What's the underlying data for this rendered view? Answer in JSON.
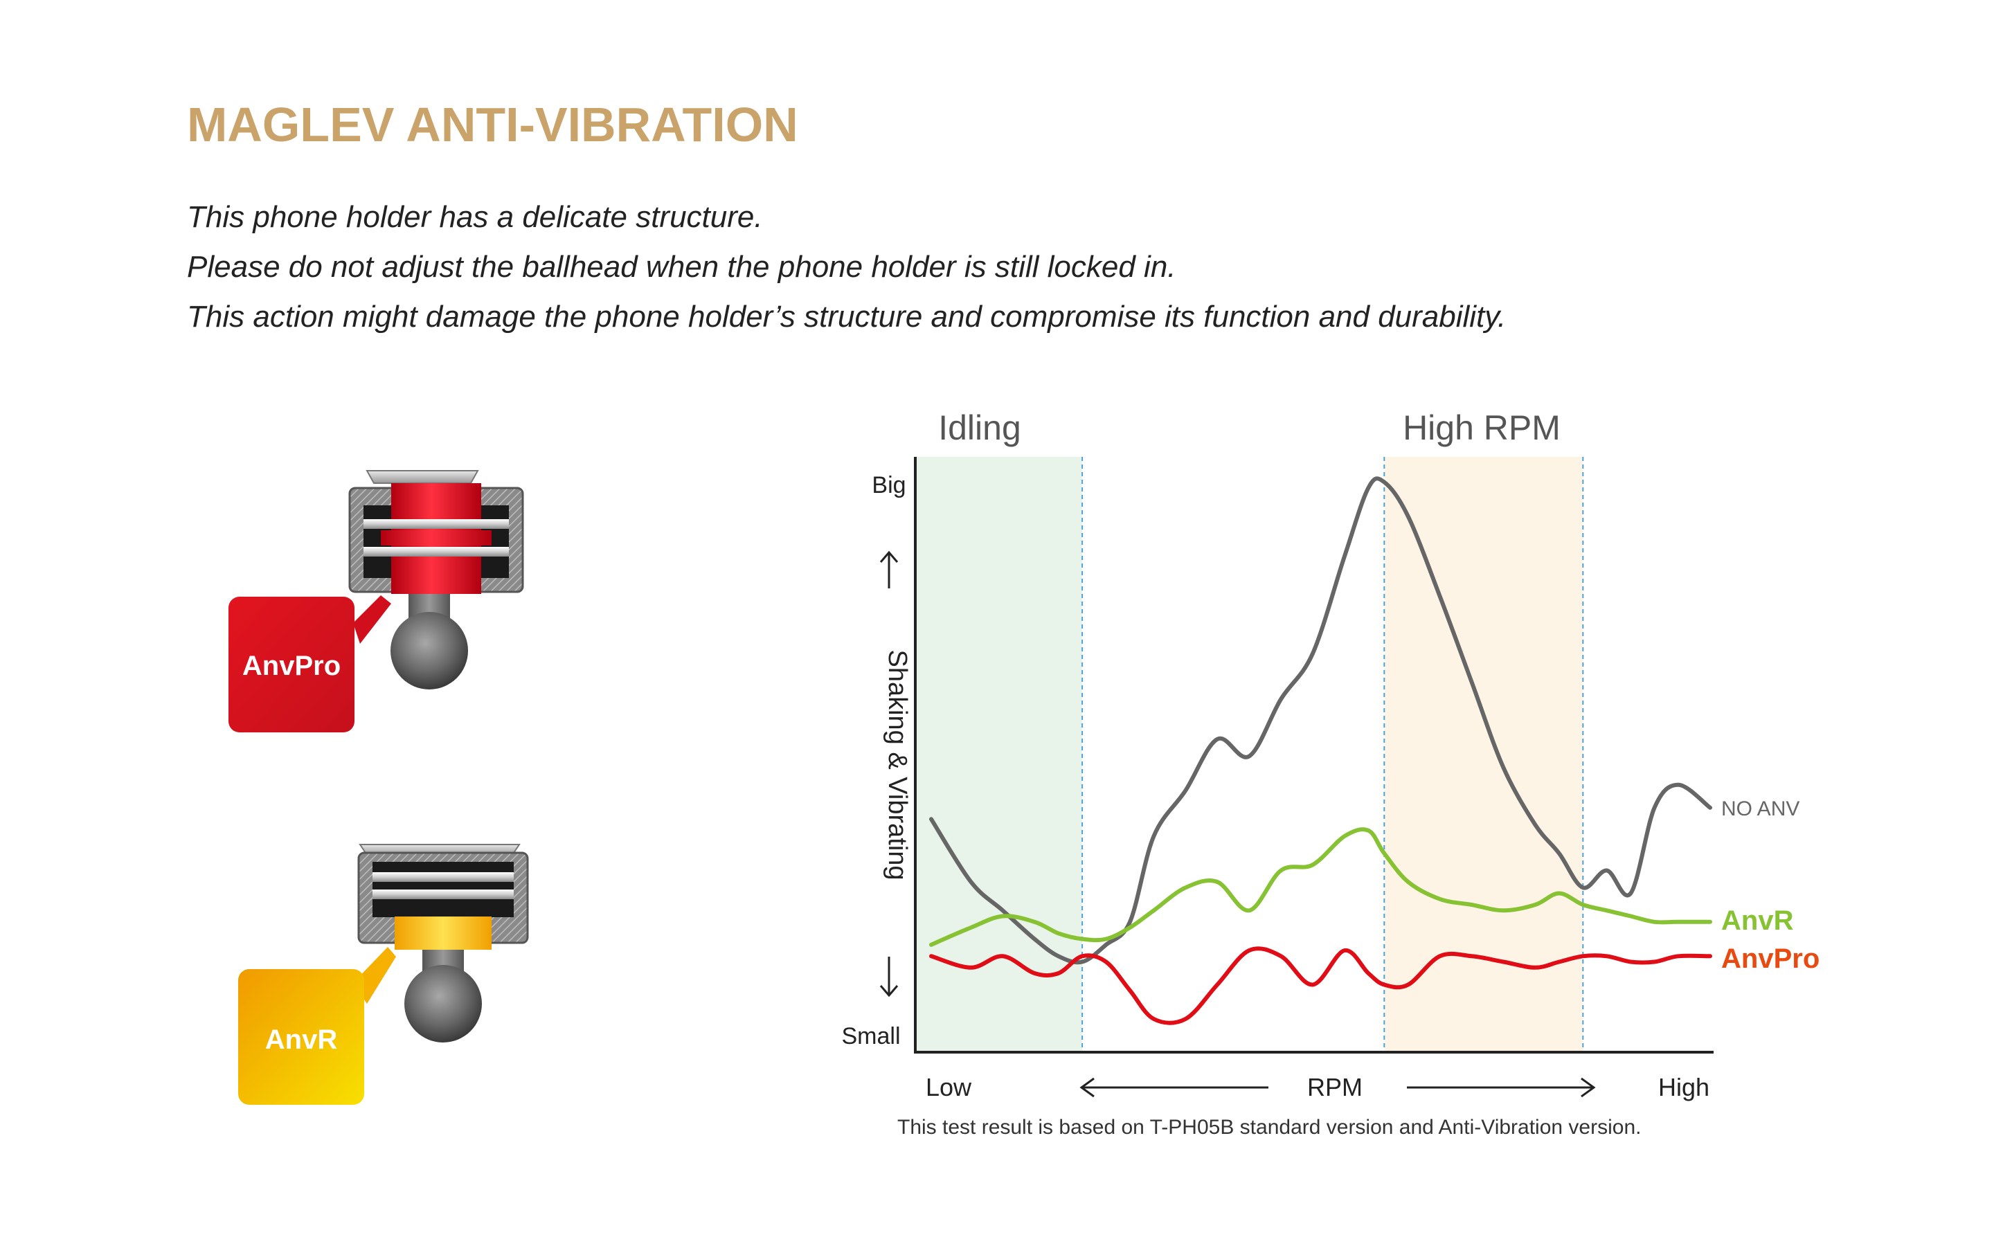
{
  "header": {
    "title": "MAGLEV ANTI-VIBRATION",
    "lines": [
      "This phone holder has a delicate structure.",
      "Please do not adjust the ballhead when the phone holder is still locked in.",
      "This action might damage the phone holder’s structure and compromise its function and durability."
    ]
  },
  "products": {
    "anvpro": {
      "label": "AnvPro",
      "color": "#d0101e"
    },
    "anvr": {
      "label": "AnvR",
      "color": "#f0a300"
    }
  },
  "chart_data": {
    "type": "line",
    "xlabel": "RPM",
    "ylabel": "Shaking & Vibrating",
    "x_tick_labels": [
      "Low",
      "High"
    ],
    "y_tick_labels": [
      "Small",
      "Big"
    ],
    "xlim": [
      0,
      100
    ],
    "ylim": [
      0,
      100
    ],
    "regions": [
      {
        "label": "Idling",
        "x_from": 0,
        "x_to": 21,
        "color": "#e8f4ea"
      },
      {
        "label": "High RPM",
        "x_from": 59,
        "x_to": 84,
        "color": "#fdf4e6"
      }
    ],
    "x": [
      2,
      7,
      11,
      15,
      18,
      21,
      24,
      27,
      30,
      34,
      38,
      42,
      46,
      50,
      54,
      57,
      59,
      62,
      66,
      70,
      74,
      78,
      81,
      84,
      87,
      90,
      93,
      96,
      100
    ],
    "series": [
      {
        "name": "NO ANV",
        "color": "#666666",
        "values": [
          39,
          28,
          23,
          18,
          15,
          14,
          17,
          21,
          36,
          44,
          53,
          50,
          60,
          68,
          85,
          97,
          98,
          92,
          78,
          63,
          48,
          38,
          33,
          27,
          30,
          26,
          41,
          45,
          41
        ]
      },
      {
        "name": "AnvR",
        "color": "#86c232",
        "values": [
          17,
          20,
          22,
          21,
          19,
          18,
          18,
          20,
          23,
          27,
          28,
          23,
          30,
          31,
          36,
          37,
          33,
          28,
          25,
          24,
          23,
          24,
          26,
          24,
          23,
          22,
          21,
          21,
          21
        ]
      },
      {
        "name": "AnvPro",
        "color": "#e00d16",
        "values": [
          15,
          13,
          15,
          12,
          12,
          15,
          14,
          9,
          4,
          4,
          10,
          16,
          15,
          10,
          16,
          12,
          10,
          10,
          15,
          15,
          14,
          13,
          14,
          15,
          15,
          14,
          14,
          15,
          15
        ]
      }
    ],
    "series_label_colors": {
      "NO ANV": "#666666",
      "AnvR": "#86c232",
      "AnvPro": "#e84a10"
    },
    "grid": false,
    "legend": "right, inline labels"
  },
  "footnote": "This test result is based on T-PH05B standard version and Anti-Vibration version."
}
